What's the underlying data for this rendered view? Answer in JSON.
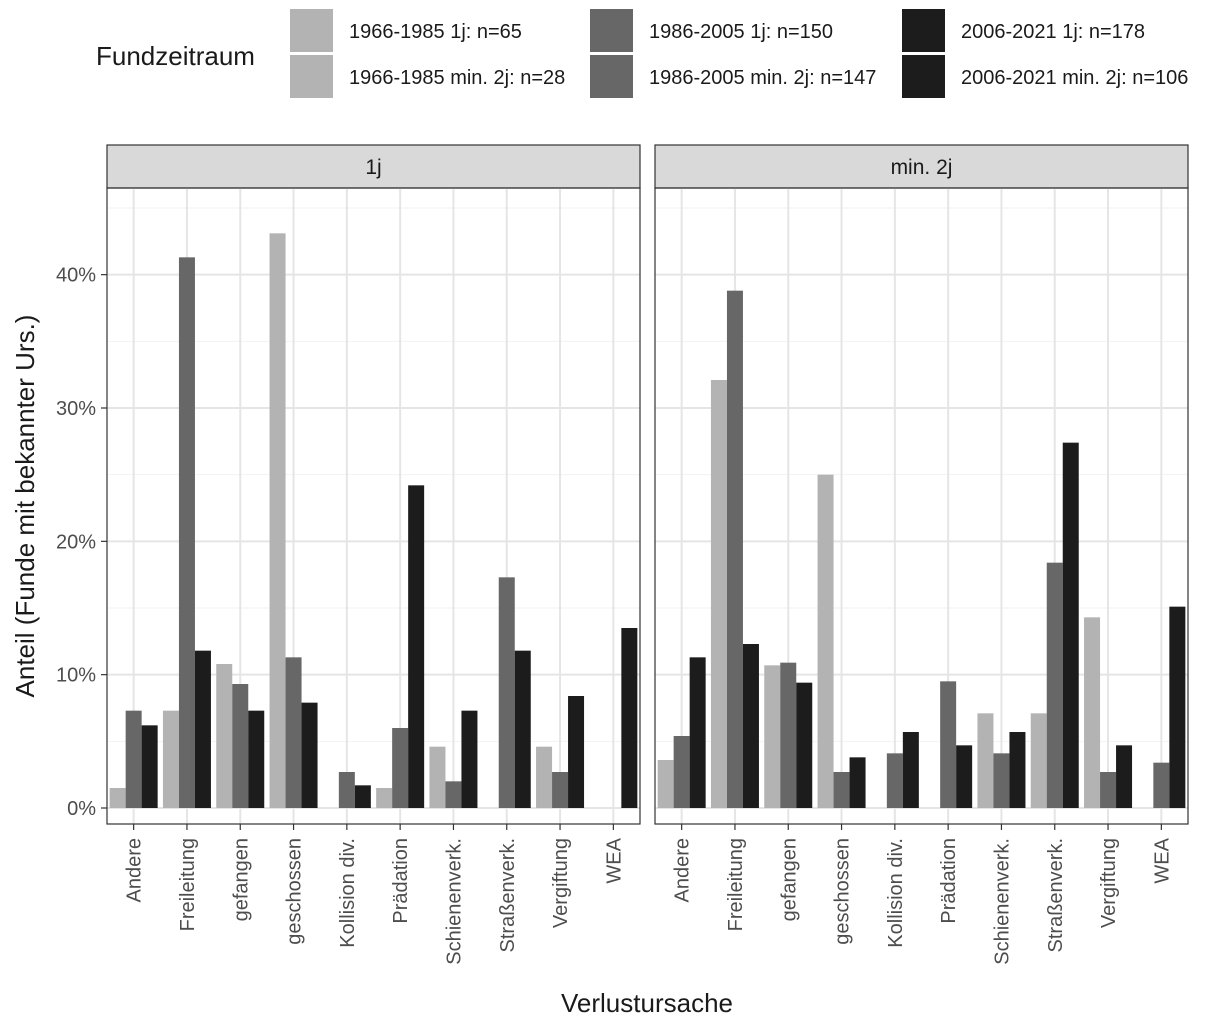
{
  "chart_data": {
    "type": "bar",
    "legend": {
      "title": "Fundzeitraum",
      "placement": "top",
      "entries": [
        {
          "label": "1966-1985 1j: n=65",
          "color": "#b3b3b3"
        },
        {
          "label": "1966-1985 min. 2j: n=28",
          "color": "#b3b3b3"
        },
        {
          "label": "1986-2005 1j: n=150",
          "color": "#676767"
        },
        {
          "label": "1986-2005 min. 2j: n=147",
          "color": "#676767"
        },
        {
          "label": "2006-2021 1j: n=178",
          "color": "#1c1c1c"
        },
        {
          "label": "2006-2021 min. 2j: n=106",
          "color": "#1c1c1c"
        }
      ]
    },
    "xlabel": "Verlustursache",
    "ylabel": "Anteil (Funde mit bekannter Urs.)",
    "ylim": [
      -1.2,
      46.5
    ],
    "yticks": [
      0,
      10,
      20,
      30,
      40
    ],
    "ytick_labels": [
      "0%",
      "10%",
      "20%",
      "30%",
      "40%"
    ],
    "grid": true,
    "categories": [
      "Andere",
      "Freileitung",
      "gefangen",
      "geschossen",
      "Kollision div.",
      "Prädation",
      "Schienenverk.",
      "Straßenverk.",
      "Vergiftung",
      "WEA"
    ],
    "series_colors": [
      "#b3b3b3",
      "#676767",
      "#1c1c1c"
    ],
    "panels": [
      {
        "title": "1j",
        "series": [
          {
            "values": [
              1.5,
              7.3,
              10.8,
              43.1,
              0,
              1.5,
              4.6,
              0,
              4.6,
              0
            ]
          },
          {
            "values": [
              7.3,
              41.3,
              9.3,
              11.3,
              2.7,
              6.0,
              2.0,
              17.3,
              2.7,
              0
            ]
          },
          {
            "values": [
              6.2,
              11.8,
              7.3,
              7.9,
              1.7,
              24.2,
              7.3,
              11.8,
              8.4,
              13.5
            ]
          }
        ]
      },
      {
        "title": "min. 2j",
        "series": [
          {
            "values": [
              3.6,
              32.1,
              10.7,
              25.0,
              0,
              0,
              7.1,
              7.1,
              14.3,
              0
            ]
          },
          {
            "values": [
              5.4,
              38.8,
              10.9,
              2.7,
              4.1,
              9.5,
              4.1,
              18.4,
              2.7,
              3.4
            ]
          },
          {
            "values": [
              11.3,
              12.3,
              9.4,
              3.8,
              5.7,
              4.7,
              5.7,
              27.4,
              4.7,
              15.1
            ]
          }
        ]
      }
    ]
  }
}
